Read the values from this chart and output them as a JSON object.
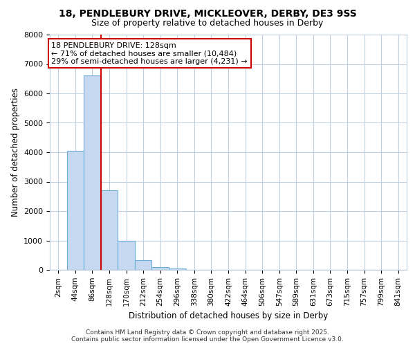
{
  "title_line1": "18, PENDLEBURY DRIVE, MICKLEOVER, DERBY, DE3 9SS",
  "title_line2": "Size of property relative to detached houses in Derby",
  "xlabel": "Distribution of detached houses by size in Derby",
  "ylabel": "Number of detached properties",
  "categories": [
    "2sqm",
    "44sqm",
    "86sqm",
    "128sqm",
    "170sqm",
    "212sqm",
    "254sqm",
    "296sqm",
    "338sqm",
    "380sqm",
    "422sqm",
    "464sqm",
    "506sqm",
    "547sqm",
    "589sqm",
    "631sqm",
    "673sqm",
    "715sqm",
    "757sqm",
    "799sqm",
    "841sqm"
  ],
  "values": [
    0,
    4050,
    6620,
    2700,
    1000,
    330,
    100,
    50,
    0,
    0,
    0,
    0,
    0,
    0,
    0,
    0,
    0,
    0,
    0,
    0,
    0
  ],
  "bar_color": "#c6d9f0",
  "bar_edge_color": "#6baed6",
  "vline_x_index": 3,
  "vline_color": "#cc0000",
  "annotation_text": "18 PENDLEBURY DRIVE: 128sqm\n← 71% of detached houses are smaller (10,484)\n29% of semi-detached houses are larger (4,231) →",
  "annotation_box_edge": "#cc0000",
  "ylim": [
    0,
    8000
  ],
  "yticks": [
    0,
    1000,
    2000,
    3000,
    4000,
    5000,
    6000,
    7000,
    8000
  ],
  "grid_color": "#c0cfe0",
  "bg_color": "#ffffff",
  "footer_line1": "Contains HM Land Registry data © Crown copyright and database right 2025.",
  "footer_line2": "Contains public sector information licensed under the Open Government Licence v3.0."
}
